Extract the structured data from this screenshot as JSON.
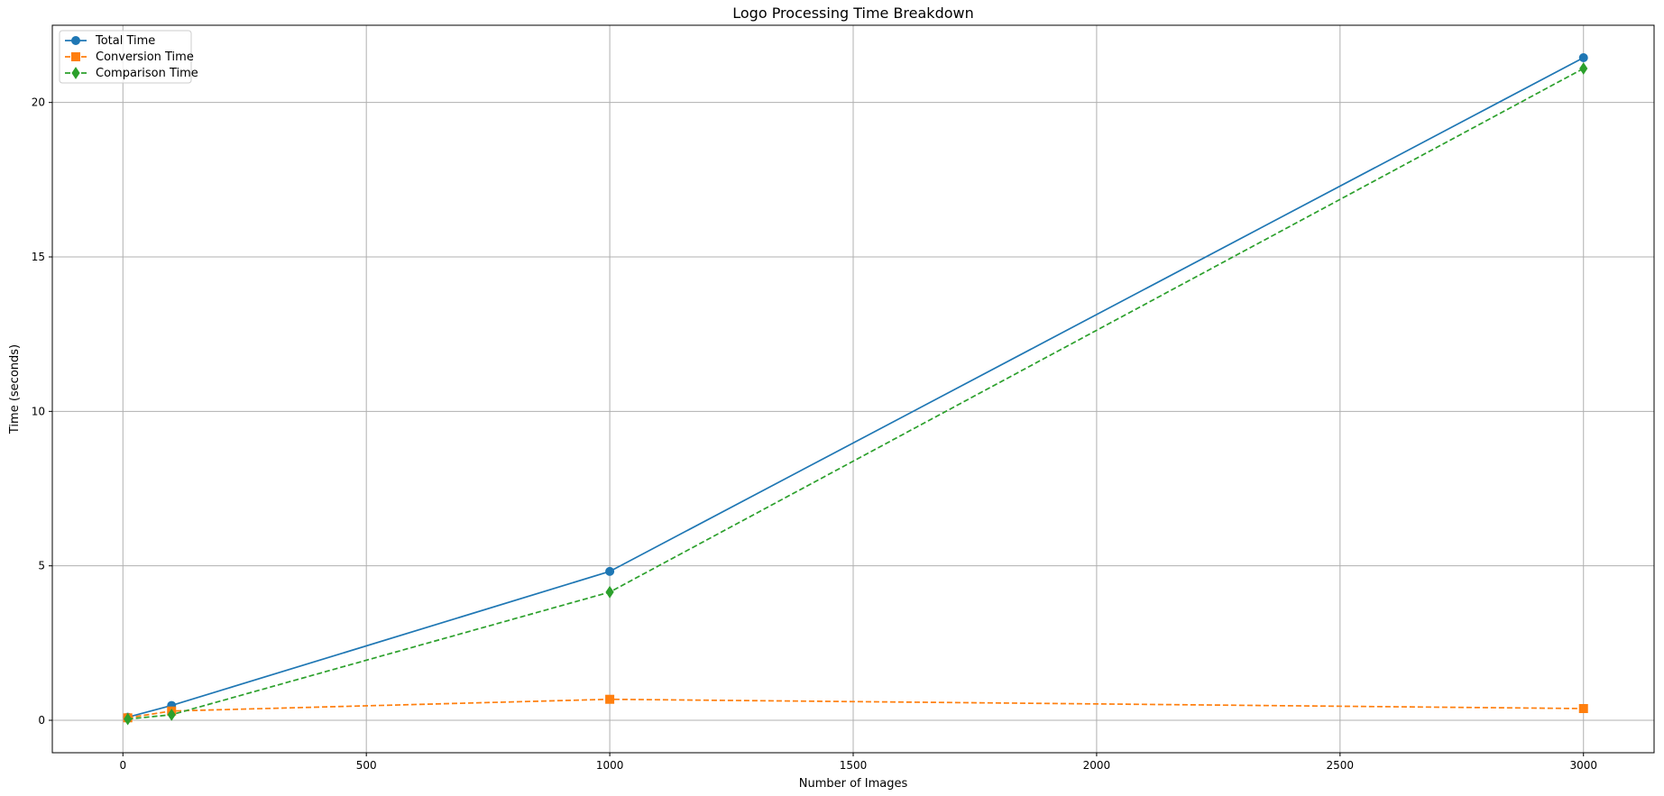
{
  "chart_data": {
    "type": "line",
    "title": "Logo Processing Time Breakdown",
    "xlabel": "Number of Images",
    "ylabel": "Time (seconds)",
    "xlim": [
      -145,
      3145
    ],
    "ylim": [
      -1.05,
      22.5
    ],
    "x_ticks": [
      0,
      500,
      1000,
      1500,
      2000,
      2500,
      3000
    ],
    "y_ticks": [
      0,
      5,
      10,
      15,
      20
    ],
    "grid": true,
    "legend_position": "upper left",
    "x": [
      10,
      100,
      1000,
      3000
    ],
    "series": [
      {
        "name": "Total Time",
        "values": [
          0.1,
          0.48,
          4.82,
          21.45
        ],
        "color": "#1f77b4",
        "linestyle": "solid",
        "marker": "circle"
      },
      {
        "name": "Conversion Time",
        "values": [
          0.08,
          0.3,
          0.68,
          0.38
        ],
        "color": "#ff7f0e",
        "linestyle": "dashed",
        "marker": "square"
      },
      {
        "name": "Comparison Time",
        "values": [
          0.04,
          0.18,
          4.15,
          21.1
        ],
        "color": "#2ca02c",
        "linestyle": "dashed",
        "marker": "diamond"
      }
    ]
  }
}
